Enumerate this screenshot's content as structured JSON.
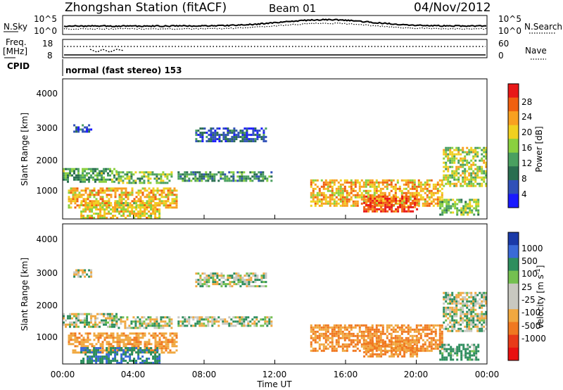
{
  "header": {
    "station": "Zhongshan Station (fitACF)",
    "beam": "Beam 01",
    "date": "04/Nov/2012"
  },
  "panels": {
    "nsky": {
      "label": "N.Sky",
      "ticks_left": [
        "10^5",
        "10^0"
      ],
      "ticks_right": [
        "10^5",
        "10^0"
      ],
      "right_label": "N.Search"
    },
    "freq": {
      "label_top": "Freq.",
      "label_unit": "[MHz]",
      "ticks_left": [
        "18",
        "8"
      ],
      "ticks_right": [
        "60",
        "0"
      ],
      "right_label": "Nave"
    },
    "cpid": {
      "label": "CPID",
      "text": "normal (fast stereo) 153"
    }
  },
  "power_panel": {
    "ylabel": "Slant Range [km]",
    "yticks": [
      "4000",
      "3000",
      "2000",
      "1000"
    ],
    "colorbar_label": "Power [dB]",
    "colorbar_ticks": [
      "28",
      "24",
      "20",
      "16",
      "12",
      "8",
      "4"
    ]
  },
  "velocity_panel": {
    "ylabel": "Slant Range [km]",
    "yticks": [
      "4000",
      "3000",
      "2000",
      "1000"
    ],
    "colorbar_label": "Velocity [m s",
    "colorbar_label_sup": "-1",
    "colorbar_label_end": "]",
    "colorbar_ticks": [
      "1000",
      "500",
      "100",
      "25",
      "-25",
      "-100",
      "-500",
      "-1000"
    ]
  },
  "xaxis": {
    "label": "Time UT",
    "ticks": [
      "00:00",
      "04:00",
      "08:00",
      "12:00",
      "16:00",
      "20:00",
      "00:00"
    ]
  },
  "colors": {
    "power_scale": [
      "#1a1aff",
      "#3050b8",
      "#2a6e50",
      "#4aa060",
      "#8ad040",
      "#f0d020",
      "#f8a020",
      "#f06010",
      "#e81818"
    ],
    "velocity_scale": [
      "#1a3aa8",
      "#3a6ad8",
      "#2e8e5e",
      "#74c050",
      "#c8c8c0",
      "#c8c8c0",
      "#f0a840",
      "#f07820",
      "#e83a18",
      "#e81010"
    ]
  },
  "chart_data": {
    "type": "heatmap",
    "x_range_hours": [
      0,
      24
    ],
    "y_range_km": [
      180,
      4500
    ],
    "power_blobs": [
      {
        "t": [
          0.6,
          1.6
        ],
        "r": [
          2850,
          3100
        ],
        "power": 6
      },
      {
        "t": [
          0.0,
          3.0
        ],
        "r": [
          1300,
          1750
        ],
        "power": 12
      },
      {
        "t": [
          3.0,
          6.2
        ],
        "r": [
          1300,
          1650
        ],
        "power": 14
      },
      {
        "t": [
          0.3,
          6.5
        ],
        "r": [
          500,
          1150
        ],
        "power": 20
      },
      {
        "t": [
          1.0,
          5.5
        ],
        "r": [
          200,
          700
        ],
        "power": 18
      },
      {
        "t": [
          6.5,
          11.8
        ],
        "r": [
          1350,
          1650
        ],
        "power": 10
      },
      {
        "t": [
          7.5,
          11.5
        ],
        "r": [
          2550,
          3000
        ],
        "power": 6
      },
      {
        "t": [
          14.0,
          21.5
        ],
        "r": [
          600,
          1400
        ],
        "power": 20
      },
      {
        "t": [
          17.0,
          20.0
        ],
        "r": [
          400,
          900
        ],
        "power": 26
      },
      {
        "t": [
          21.5,
          23.9
        ],
        "r": [
          1200,
          2400
        ],
        "power": 16
      },
      {
        "t": [
          21.3,
          23.5
        ],
        "r": [
          300,
          800
        ],
        "power": 14
      }
    ],
    "velocity_blobs": [
      {
        "t": [
          0.6,
          1.6
        ],
        "r": [
          2850,
          3100
        ],
        "velocity": 0
      },
      {
        "t": [
          0.0,
          3.0
        ],
        "r": [
          1300,
          1750
        ],
        "velocity": 0
      },
      {
        "t": [
          3.0,
          6.2
        ],
        "r": [
          1300,
          1650
        ],
        "velocity": 0
      },
      {
        "t": [
          0.3,
          6.5
        ],
        "r": [
          500,
          1150
        ],
        "velocity": -250
      },
      {
        "t": [
          1.0,
          5.5
        ],
        "r": [
          200,
          700
        ],
        "velocity": 250
      },
      {
        "t": [
          6.5,
          11.8
        ],
        "r": [
          1350,
          1650
        ],
        "velocity": 0
      },
      {
        "t": [
          7.5,
          11.5
        ],
        "r": [
          2550,
          3000
        ],
        "velocity": 0
      },
      {
        "t": [
          14.0,
          21.5
        ],
        "r": [
          600,
          1400
        ],
        "velocity": -300
      },
      {
        "t": [
          17.0,
          20.0
        ],
        "r": [
          400,
          900
        ],
        "velocity": -300
      },
      {
        "t": [
          21.5,
          23.9
        ],
        "r": [
          1200,
          2400
        ],
        "velocity": 0
      },
      {
        "t": [
          21.3,
          23.5
        ],
        "r": [
          300,
          800
        ],
        "velocity": 150
      }
    ]
  }
}
